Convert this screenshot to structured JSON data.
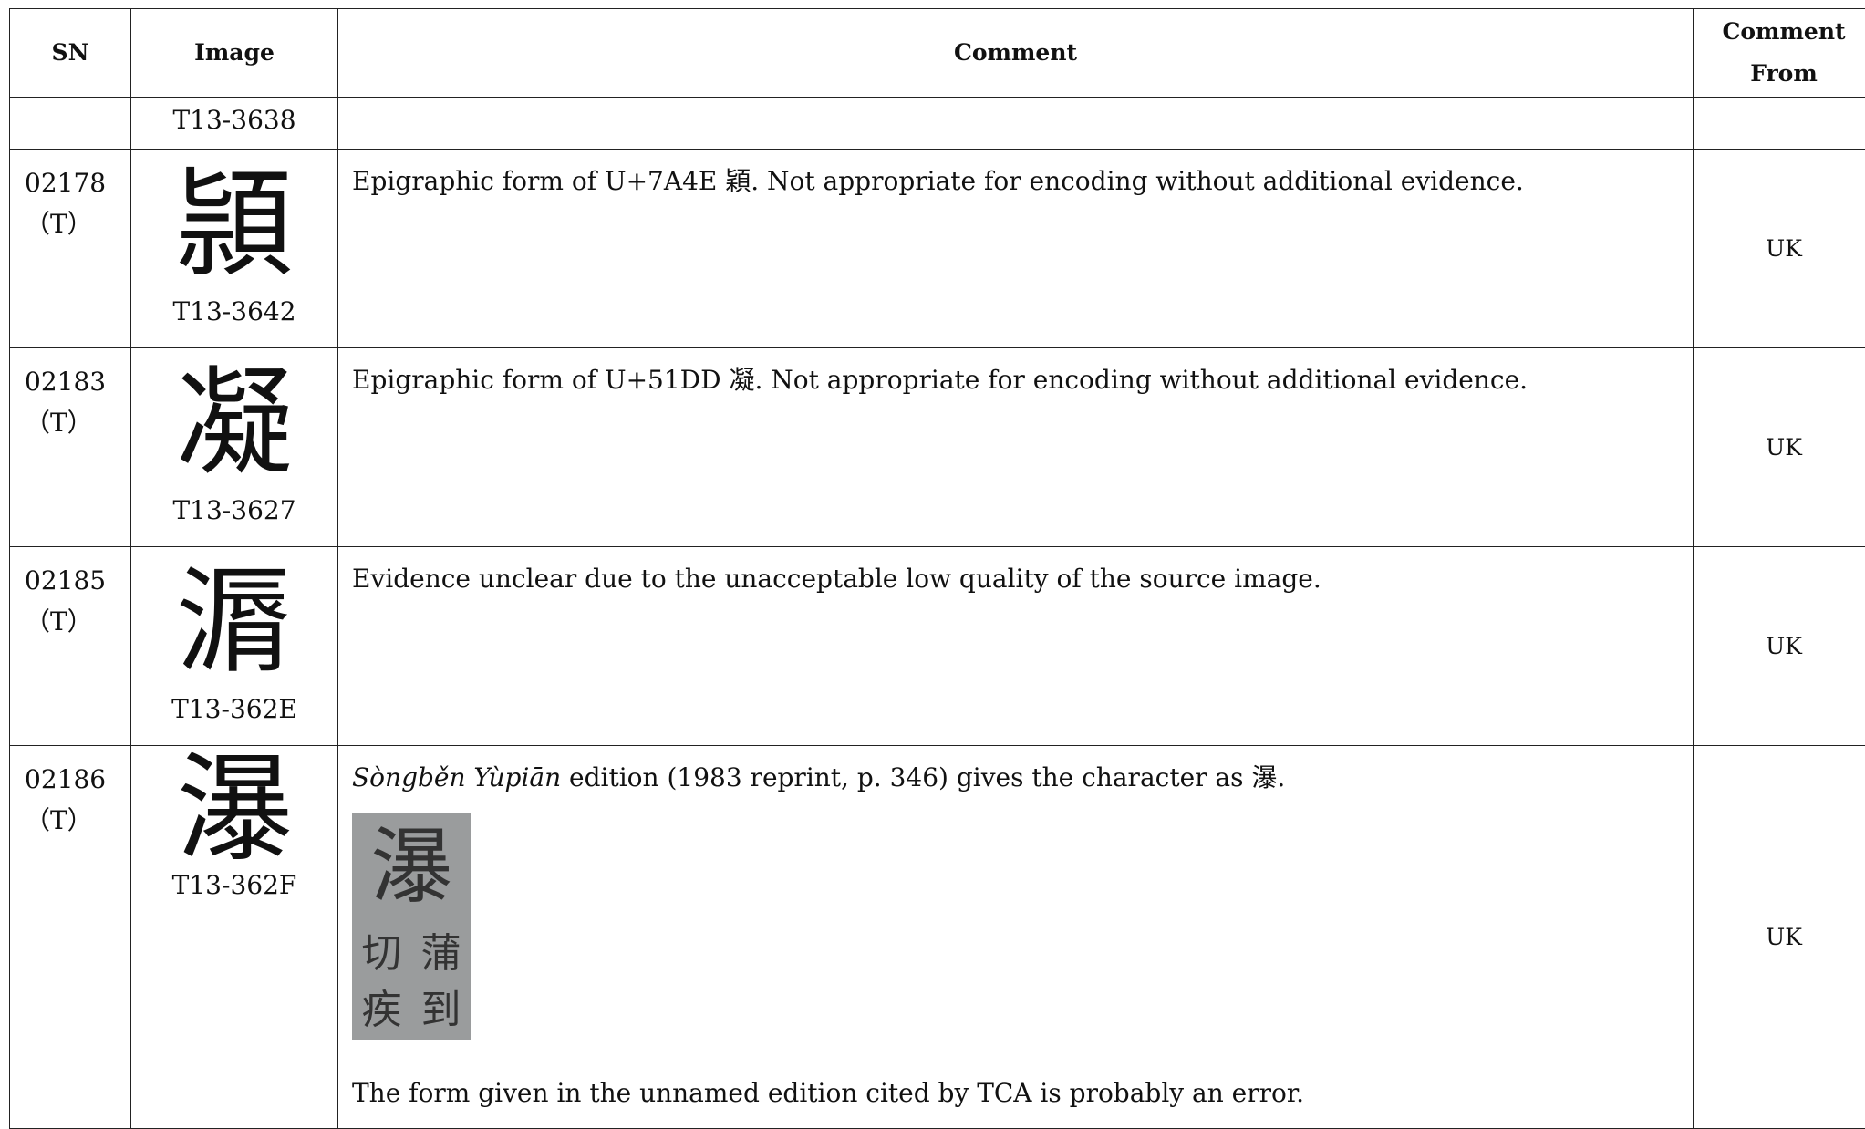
{
  "header": {
    "columns": [
      "SN",
      "Image",
      "Comment",
      "Comment From"
    ]
  },
  "rows": [
    {
      "sn": null,
      "sn_note": null,
      "glyph": null,
      "source": "T13-3638",
      "comment": null,
      "from": null
    },
    {
      "sn": "02178",
      "sn_note": "（T）",
      "glyph": "頴",
      "source": "T13-3642",
      "comment": "Epigraphic form of U+7A4E 穎. Not appropriate for encoding without additional evidence.",
      "from": "UK"
    },
    {
      "sn": "02183",
      "sn_note": "（T）",
      "glyph": "凝",
      "source": "T13-3627",
      "comment": "Epigraphic form of U+51DD 凝. Not appropriate for encoding without additional evidence.",
      "from": "UK"
    },
    {
      "sn": "02185",
      "sn_note": "（T）",
      "glyph": "漘",
      "source": "T13-362E",
      "comment": "Evidence unclear due to the unacceptable low quality of the source image.",
      "from": "UK"
    },
    {
      "sn": "02186",
      "sn_note": "（T）",
      "glyph": "瀑",
      "source": "T13-362F",
      "comment_title": "Sòngběn Yùpiān",
      "comment": " edition (1983 reprint, p. 346) gives the character as 瀑.",
      "scan_text": [
        "瀑",
        "切",
        "蒲",
        "疾",
        "到"
      ],
      "comment_2": "The form given in the unnamed edition cited by TCA is probably an error.",
      "from": "UK"
    }
  ]
}
